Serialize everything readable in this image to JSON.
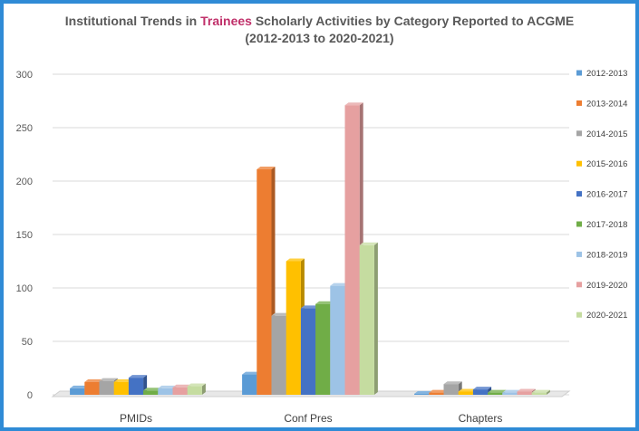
{
  "chart_data": {
    "type": "bar",
    "title_prefix": "Institutional Trends in ",
    "title_highlight": "Trainees",
    "title_suffix": " Scholarly Activities by Category Reported to ACGME",
    "subtitle": "(2012-2013 to 2020-2021)",
    "categories": [
      "PMIDs",
      "Conf Pres",
      "Chapters"
    ],
    "ylim": [
      0,
      300
    ],
    "yticks": [
      0,
      50,
      100,
      150,
      200,
      250,
      300
    ],
    "grid": true,
    "legend_position": "right",
    "series": [
      {
        "name": "2012-2013",
        "color": "#5b9bd5",
        "values": [
          6,
          19,
          1
        ]
      },
      {
        "name": "2013-2014",
        "color": "#ed7d31",
        "values": [
          12,
          211,
          2
        ]
      },
      {
        "name": "2014-2015",
        "color": "#a5a5a5",
        "values": [
          13,
          74,
          10
        ]
      },
      {
        "name": "2015-2016",
        "color": "#ffc000",
        "values": [
          12,
          125,
          3
        ]
      },
      {
        "name": "2016-2017",
        "color": "#4472c4",
        "values": [
          16,
          81,
          5
        ]
      },
      {
        "name": "2017-2018",
        "color": "#70ad47",
        "values": [
          4,
          85,
          2
        ]
      },
      {
        "name": "2018-2019",
        "color": "#9dc3e6",
        "values": [
          6,
          102,
          2
        ]
      },
      {
        "name": "2019-2020",
        "color": "#e6a0a0",
        "values": [
          7,
          271,
          3
        ]
      },
      {
        "name": "2020-2021",
        "color": "#c5dca0",
        "values": [
          8,
          140,
          2
        ]
      }
    ]
  }
}
